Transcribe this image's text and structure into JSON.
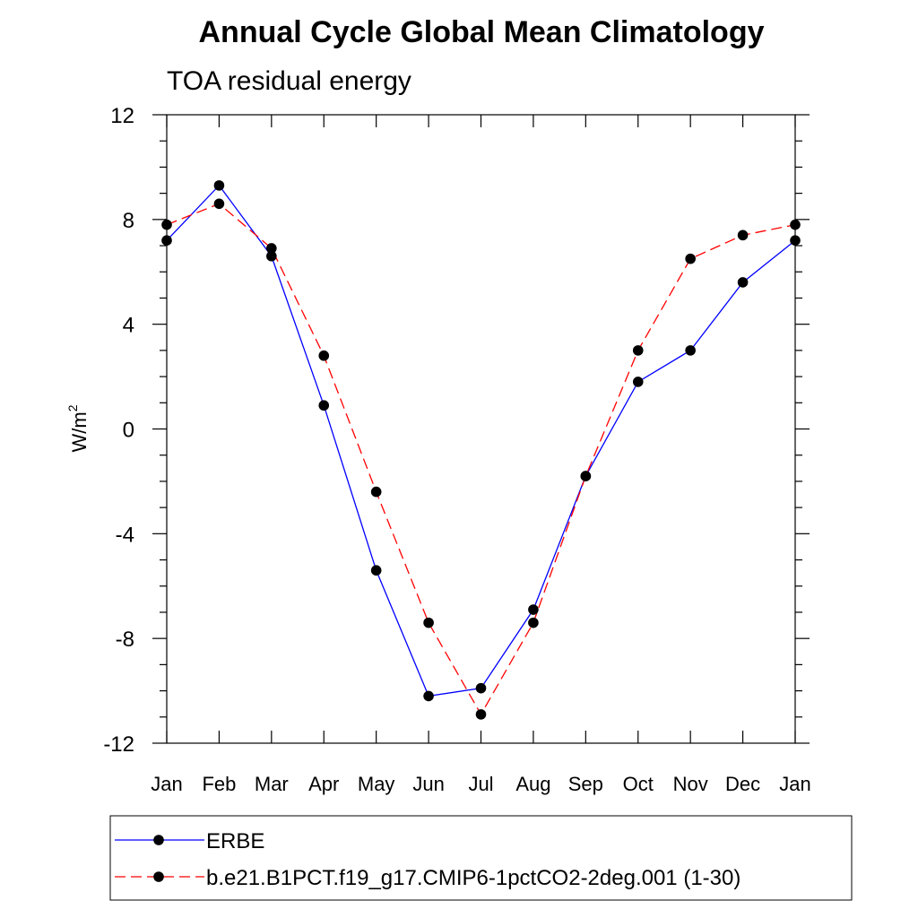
{
  "chart_data": {
    "type": "line",
    "title": "Annual Cycle Global Mean Climatology",
    "subtitle": "TOA residual energy",
    "ylabel_base": "W/m",
    "ylabel_sup": "2",
    "xlabel": "",
    "categories": [
      "Jan",
      "Feb",
      "Mar",
      "Apr",
      "May",
      "Jun",
      "Jul",
      "Aug",
      "Sep",
      "Oct",
      "Nov",
      "Dec",
      "Jan"
    ],
    "ylim": [
      -12,
      12
    ],
    "yticks": [
      "12",
      "8",
      "4",
      "0",
      "-4",
      "-8",
      "-12"
    ],
    "ytick_values": [
      12,
      8,
      4,
      0,
      -4,
      -8,
      -12
    ],
    "y_minor_step": 1,
    "grid": false,
    "legend_position": "bottom",
    "series": [
      {
        "name": "ERBE",
        "color": "#0000ff",
        "dash": "solid",
        "values": [
          7.2,
          9.3,
          6.6,
          0.9,
          -5.4,
          -10.2,
          -9.9,
          -6.9,
          -1.8,
          1.8,
          3.0,
          5.6,
          7.2
        ]
      },
      {
        "name": "b.e21.B1PCT.f19_g17.CMIP6-1pctCO2-2deg.001 (1-30)",
        "color": "#ff0000",
        "dash": "dashed",
        "values": [
          7.8,
          8.6,
          6.9,
          2.8,
          -2.4,
          -7.4,
          -10.9,
          -7.4,
          -1.8,
          3.0,
          6.5,
          7.4,
          7.8
        ]
      }
    ]
  }
}
